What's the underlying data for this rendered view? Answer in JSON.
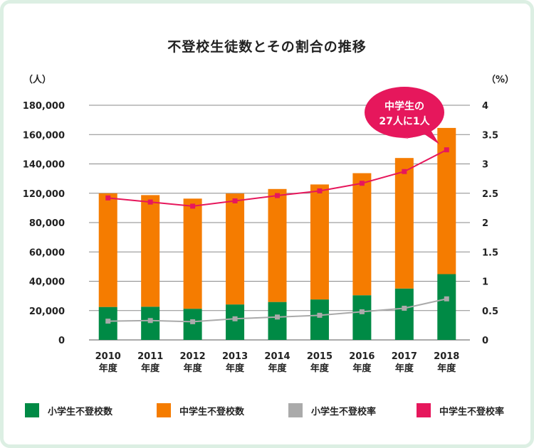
{
  "chart_data": {
    "type": "bar",
    "title": "不登校生徒数とその割合の推移",
    "y_left_unit": "（人）",
    "y_right_unit": "（%）",
    "categories": [
      "2010\n年度",
      "2011\n年度",
      "2012\n年度",
      "2013\n年度",
      "2014\n年度",
      "2015\n年度",
      "2016\n年度",
      "2017\n年度",
      "2018\n年度"
    ],
    "y_left_ticks": [
      "0",
      "20,000",
      "40,000",
      "60,000",
      "80,000",
      "120,000",
      "140,000",
      "160,000",
      "180,000"
    ],
    "y_right_ticks": [
      "0",
      "0.5",
      "1",
      "1.5",
      "2",
      "2.5",
      "3",
      "3.5",
      "4"
    ],
    "series": [
      {
        "name": "小学生不登校数",
        "kind": "bar",
        "color": "#008a45",
        "values": [
          22463,
          22622,
          21243,
          24175,
          25864,
          27583,
          30448,
          35032,
          44841
        ]
      },
      {
        "name": "中学生不登校数",
        "kind": "bar",
        "color": "#f57c00",
        "values": [
          97428,
          94836,
          91446,
          95442,
          97033,
          98408,
          103235,
          108999,
          119687
        ]
      },
      {
        "name": "小学生不登校率",
        "kind": "line",
        "color": "#aaaaaa",
        "values": [
          0.32,
          0.33,
          0.31,
          0.36,
          0.39,
          0.42,
          0.48,
          0.54,
          0.7
        ]
      },
      {
        "name": "中学生不登校率",
        "kind": "line",
        "color": "#e6175c",
        "values": [
          2.42,
          2.35,
          2.28,
          2.37,
          2.46,
          2.54,
          2.67,
          2.87,
          3.24
        ]
      }
    ],
    "annotation": {
      "line1": "中学生の",
      "line2": "27人に1人",
      "color": "#e6175c"
    },
    "grid": true,
    "legend_position": "bottom"
  }
}
